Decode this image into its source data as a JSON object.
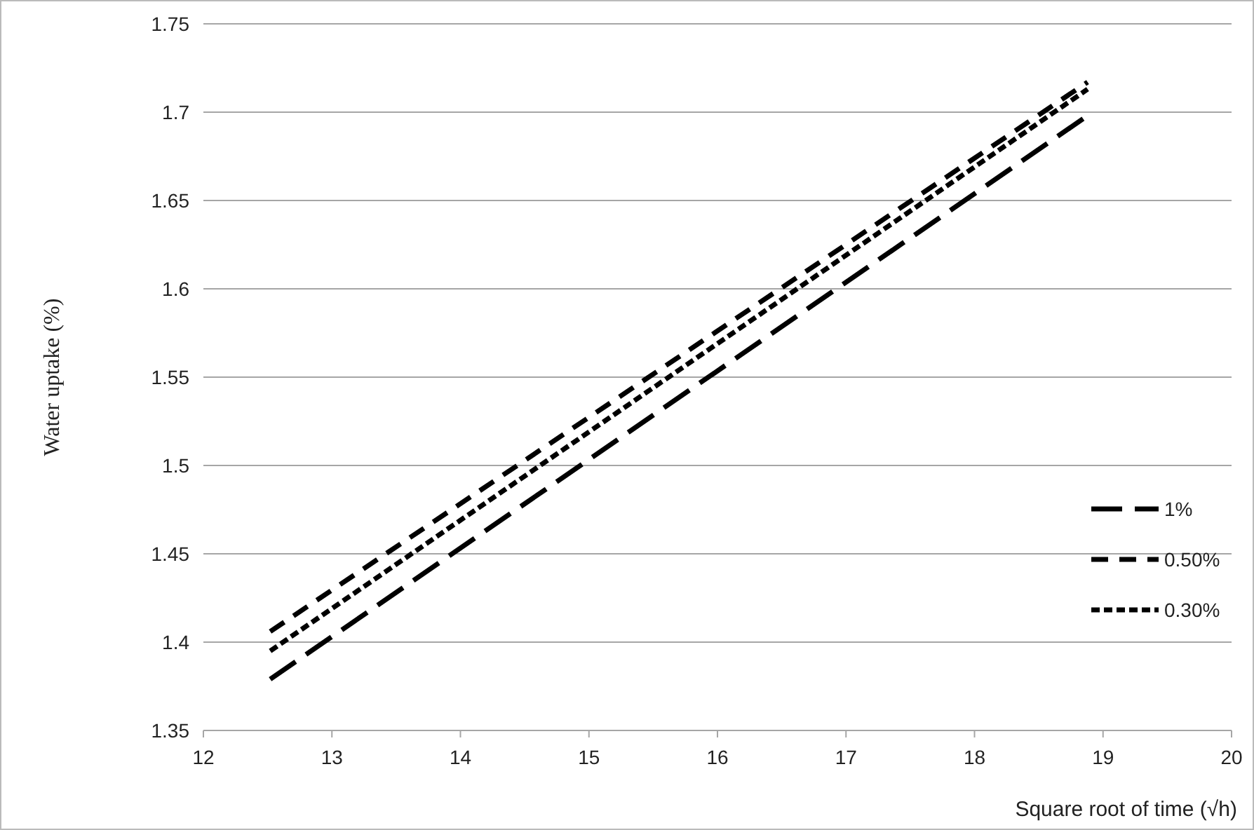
{
  "chart_data": {
    "type": "line",
    "xlabel": "Square root of time (√h)",
    "ylabel": "Water uptake (%)",
    "x": [
      12.52,
      18.88
    ],
    "xlim": [
      12,
      20
    ],
    "xticks": [
      12,
      13,
      14,
      15,
      16,
      17,
      18,
      19,
      20
    ],
    "ylim": [
      1.35,
      1.75
    ],
    "yticks": [
      1.35,
      1.4,
      1.45,
      1.5,
      1.55,
      1.6,
      1.65,
      1.7,
      1.75
    ],
    "grid": "y",
    "legend": "right",
    "marker": "none",
    "series": [
      {
        "name": "1%",
        "color": "#000000",
        "line_style": "dashed",
        "values": [
          1.379,
          1.698
        ]
      },
      {
        "name": "0.50%",
        "color": "#000000",
        "line_style": "dashed",
        "values": [
          1.406,
          1.717
        ]
      },
      {
        "name": "0.30%",
        "color": "#000000",
        "line_style": "dotted",
        "values": [
          1.395,
          1.713
        ]
      }
    ]
  }
}
